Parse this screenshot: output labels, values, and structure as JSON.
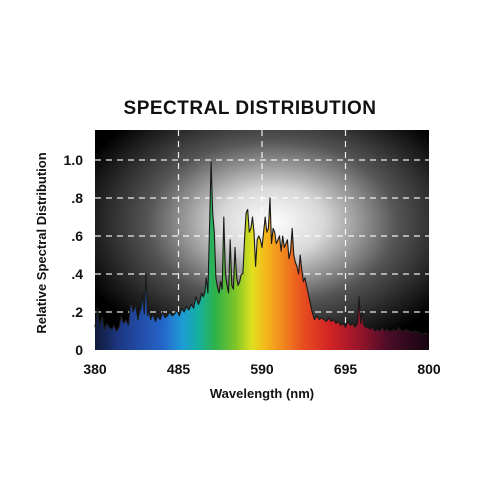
{
  "chart_data": {
    "type": "area",
    "title": "SPECTRAL DISTRIBUTION",
    "xlabel": "Wavelength (nm)",
    "ylabel": "Relative Spectral Distribution",
    "xlim": [
      380,
      800
    ],
    "ylim": [
      0,
      1.0
    ],
    "x_ticks": [
      380,
      485,
      590,
      695,
      800
    ],
    "x_tick_labels": [
      "380",
      "485",
      "590",
      "695",
      "800"
    ],
    "y_ticks": [
      0,
      0.2,
      0.4,
      0.6,
      0.8,
      1.0
    ],
    "y_tick_labels": [
      "0",
      ".2",
      ".4",
      ".6",
      ".8",
      "1.0"
    ],
    "grid": true,
    "legend": "none",
    "series": [
      {
        "x": [
          380,
          383,
          386,
          389,
          392,
          395,
          398,
          401,
          404,
          407,
          410,
          413,
          416,
          419,
          422,
          425,
          428,
          431,
          434,
          436,
          438,
          440,
          442,
          444,
          446,
          448,
          450,
          453,
          456,
          459,
          462,
          465,
          468,
          471,
          474,
          477,
          480,
          483,
          486,
          489,
          492,
          495,
          498,
          501,
          504,
          507,
          510,
          512,
          514,
          516,
          518,
          520,
          522,
          524,
          526,
          528,
          530,
          532,
          534,
          536,
          538,
          540,
          542,
          544,
          546,
          548,
          550,
          552,
          554,
          556,
          558,
          560,
          562,
          564,
          566,
          568,
          570,
          572,
          574,
          576,
          578,
          580,
          582,
          584,
          586,
          588,
          590,
          592,
          594,
          596,
          598,
          600,
          602,
          604,
          606,
          608,
          610,
          612,
          614,
          616,
          618,
          620,
          622,
          624,
          626,
          628,
          630,
          632,
          634,
          636,
          638,
          640,
          642,
          644,
          646,
          648,
          650,
          653,
          656,
          659,
          662,
          665,
          668,
          671,
          674,
          677,
          680,
          683,
          686,
          689,
          692,
          695,
          698,
          701,
          704,
          707,
          710,
          712,
          714,
          716,
          718,
          720,
          723,
          726,
          729,
          732,
          735,
          738,
          741,
          744,
          747,
          750,
          753,
          756,
          759,
          762,
          765,
          768,
          771,
          774,
          777,
          780,
          783,
          786,
          789,
          792,
          795,
          800
        ],
        "values": [
          0.12,
          0.22,
          0.13,
          0.18,
          0.11,
          0.14,
          0.12,
          0.11,
          0.13,
          0.1,
          0.12,
          0.18,
          0.14,
          0.16,
          0.13,
          0.26,
          0.2,
          0.24,
          0.16,
          0.2,
          0.22,
          0.3,
          0.19,
          0.4,
          0.18,
          0.21,
          0.16,
          0.19,
          0.15,
          0.18,
          0.16,
          0.2,
          0.17,
          0.18,
          0.2,
          0.18,
          0.19,
          0.21,
          0.18,
          0.22,
          0.2,
          0.23,
          0.21,
          0.24,
          0.22,
          0.28,
          0.24,
          0.26,
          0.3,
          0.28,
          0.3,
          0.38,
          0.3,
          0.64,
          0.99,
          0.72,
          0.62,
          0.38,
          0.33,
          0.3,
          0.36,
          0.32,
          0.7,
          0.4,
          0.34,
          0.3,
          0.58,
          0.34,
          0.32,
          0.54,
          0.38,
          0.34,
          0.36,
          0.4,
          0.4,
          0.58,
          0.72,
          0.74,
          0.62,
          0.64,
          0.7,
          0.62,
          0.44,
          0.58,
          0.6,
          0.58,
          0.54,
          0.62,
          0.7,
          0.62,
          0.64,
          0.8,
          0.56,
          0.64,
          0.62,
          0.56,
          0.58,
          0.6,
          0.52,
          0.6,
          0.54,
          0.56,
          0.58,
          0.48,
          0.52,
          0.64,
          0.5,
          0.46,
          0.44,
          0.4,
          0.5,
          0.42,
          0.36,
          0.38,
          0.34,
          0.3,
          0.26,
          0.2,
          0.16,
          0.18,
          0.16,
          0.17,
          0.16,
          0.15,
          0.17,
          0.15,
          0.16,
          0.14,
          0.15,
          0.13,
          0.14,
          0.12,
          0.15,
          0.13,
          0.14,
          0.12,
          0.14,
          0.28,
          0.14,
          0.2,
          0.13,
          0.12,
          0.12,
          0.11,
          0.12,
          0.1,
          0.11,
          0.1,
          0.12,
          0.1,
          0.11,
          0.1,
          0.1,
          0.11,
          0.1,
          0.12,
          0.1,
          0.1,
          0.11,
          0.1,
          0.1,
          0.09,
          0.1,
          0.09,
          0.09,
          0.08,
          0.09,
          0.08
        ]
      }
    ]
  }
}
